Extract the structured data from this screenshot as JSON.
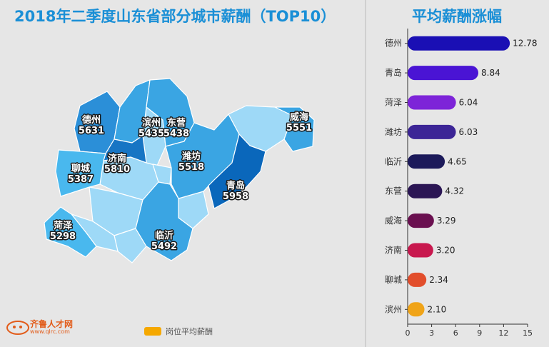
{
  "map": {
    "title": "2018年二季度山东省部分城市薪酬（TOP10）",
    "legend_label": "岗位平均薪酬",
    "legend_color": "#f5a800",
    "cities": [
      {
        "name": "德州",
        "value": "5631",
        "color": "#2b8fd8"
      },
      {
        "name": "滨州",
        "value": "5435",
        "color": "#3aa5e3"
      },
      {
        "name": "东营",
        "value": "5438",
        "color": "#3aa5e3"
      },
      {
        "name": "威海",
        "value": "5551",
        "color": "#3aa5e3"
      },
      {
        "name": "济南",
        "value": "5810",
        "color": "#1775c4"
      },
      {
        "name": "聊城",
        "value": "5387",
        "color": "#49b8ee"
      },
      {
        "name": "潍坊",
        "value": "5518",
        "color": "#3aa5e3"
      },
      {
        "name": "青岛",
        "value": "5958",
        "color": "#0a67bb"
      },
      {
        "name": "菏泽",
        "value": "5298",
        "color": "#49b8ee"
      },
      {
        "name": "临沂",
        "value": "5492",
        "color": "#3aa5e3"
      }
    ],
    "other_region_color": "#9ed9f7"
  },
  "logo": {
    "text": "齐鲁人才网",
    "url": "www.qlrc.com"
  },
  "chart_data": {
    "type": "bar",
    "orientation": "horizontal",
    "title": "平均薪酬涨幅",
    "categories": [
      "德州",
      "青岛",
      "菏泽",
      "潍坊",
      "临沂",
      "东营",
      "威海",
      "济南",
      "聊城",
      "滨州"
    ],
    "values": [
      12.78,
      8.84,
      6.04,
      6.03,
      4.65,
      4.32,
      3.29,
      3.2,
      2.34,
      2.1
    ],
    "value_labels": [
      "12.78",
      "8.84",
      "6.04",
      "6.03",
      "4.65",
      "4.32",
      "3.29",
      "3.20",
      "2.34",
      "2.10"
    ],
    "colors": [
      "#1a0fb4",
      "#4a14d4",
      "#7d24d8",
      "#3c2596",
      "#1c1a5a",
      "#2b1654",
      "#6a1050",
      "#c8184e",
      "#e24e2c",
      "#f0a418"
    ],
    "xticks": [
      "0",
      "3",
      "6",
      "9",
      "12",
      "15"
    ],
    "xlim": [
      0,
      15
    ]
  }
}
